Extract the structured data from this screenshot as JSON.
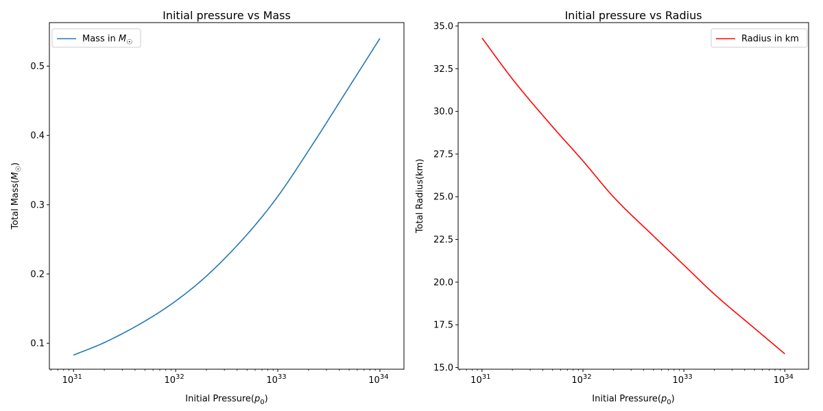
{
  "chart_data": [
    {
      "type": "line",
      "title": "Initial pressure vs Mass",
      "xlabel": "Initial Pressure(p₀)",
      "ylabel": "Total Mass(M☉)",
      "xscale": "log",
      "xlim": [
        5.8e+30,
        1.72e+34
      ],
      "ylim": [
        0.0626,
        0.5628
      ],
      "xtick_labels": [
        "10^31",
        "10^32",
        "10^33",
        "10^34"
      ],
      "ytick_values": [
        0.1,
        0.2,
        0.3,
        0.4,
        0.5
      ],
      "ytick_labels": [
        "0.1",
        "0.2",
        "0.3",
        "0.4",
        "0.5"
      ],
      "legend_position": "upper left",
      "grid": false,
      "series": [
        {
          "name": "Mass in M☉",
          "color": "#1f77b4",
          "x": [
            1e+31,
            2e+31,
            5e+31,
            1e+32,
            2e+32,
            5e+32,
            1e+33,
            2e+33,
            5e+33,
            1e+34
          ],
          "y": [
            0.083,
            0.101,
            0.132,
            0.161,
            0.197,
            0.257,
            0.312,
            0.378,
            0.47,
            0.54
          ]
        }
      ]
    },
    {
      "type": "line",
      "title": "Initial pressure vs Radius",
      "xlabel": "Initial Pressure(p₀)",
      "ylabel": "Total Radius(km)",
      "xscale": "log",
      "xlim": [
        5.8e+30,
        1.72e+34
      ],
      "ylim": [
        14.9,
        35.2
      ],
      "xtick_labels": [
        "10^31",
        "10^32",
        "10^33",
        "10^34"
      ],
      "ytick_values": [
        15.0,
        17.5,
        20.0,
        22.5,
        25.0,
        27.5,
        30.0,
        32.5,
        35.0
      ],
      "ytick_labels": [
        "15.0",
        "17.5",
        "20.0",
        "22.5",
        "25.0",
        "27.5",
        "30.0",
        "32.5",
        "35.0"
      ],
      "legend_position": "upper right",
      "grid": false,
      "series": [
        {
          "name": "Radius in km",
          "color": "#ff0000",
          "x": [
            1e+31,
            2e+31,
            5e+31,
            1e+32,
            2e+32,
            5e+32,
            1e+33,
            2e+33,
            5e+33,
            1e+34
          ],
          "y": [
            34.3,
            31.9,
            29.1,
            27.1,
            25.0,
            22.7,
            21.0,
            19.3,
            17.3,
            15.8
          ]
        }
      ]
    }
  ]
}
